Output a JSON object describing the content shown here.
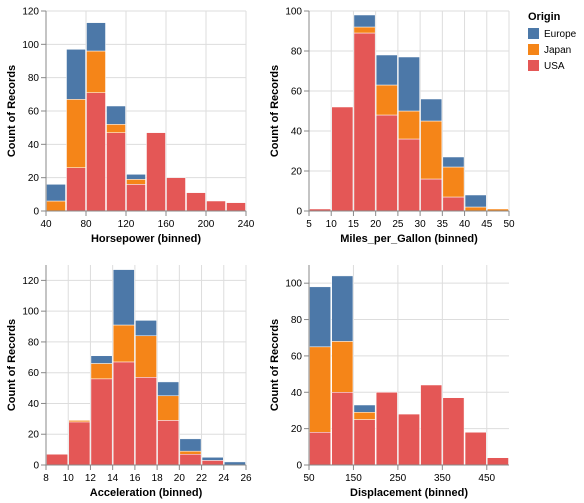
{
  "legend": {
    "title": "Origin",
    "items": [
      {
        "name": "Europe",
        "color": "#4c78a8"
      },
      {
        "name": "Japan",
        "color": "#f58518"
      },
      {
        "name": "USA",
        "color": "#e45756"
      }
    ]
  },
  "chart_data": [
    {
      "type": "bar",
      "stacked": true,
      "xlabel": "Horsepower (binned)",
      "ylabel": "Count of Records",
      "xlim": [
        40,
        240
      ],
      "ylim": [
        0,
        120
      ],
      "xticks": [
        40,
        80,
        120,
        160,
        200,
        240
      ],
      "yticks": [
        0,
        20,
        40,
        60,
        80,
        100,
        120
      ],
      "grid": true,
      "bins": [
        {
          "x0": 40,
          "x1": 60,
          "USA": 0,
          "Japan": 6,
          "Europe": 10
        },
        {
          "x0": 60,
          "x1": 80,
          "USA": 26,
          "Japan": 41,
          "Europe": 30
        },
        {
          "x0": 80,
          "x1": 100,
          "USA": 71,
          "Japan": 25,
          "Europe": 17
        },
        {
          "x0": 100,
          "x1": 120,
          "USA": 47,
          "Japan": 5,
          "Europe": 11
        },
        {
          "x0": 120,
          "x1": 140,
          "USA": 16,
          "Japan": 3,
          "Europe": 3
        },
        {
          "x0": 140,
          "x1": 160,
          "USA": 47,
          "Japan": 0,
          "Europe": 0
        },
        {
          "x0": 160,
          "x1": 180,
          "USA": 20,
          "Japan": 0,
          "Europe": 0
        },
        {
          "x0": 180,
          "x1": 200,
          "USA": 11,
          "Japan": 0,
          "Europe": 0
        },
        {
          "x0": 200,
          "x1": 220,
          "USA": 6,
          "Japan": 0,
          "Europe": 0
        },
        {
          "x0": 220,
          "x1": 240,
          "USA": 5,
          "Japan": 0,
          "Europe": 0
        }
      ]
    },
    {
      "type": "bar",
      "stacked": true,
      "xlabel": "Miles_per_Gallon (binned)",
      "ylabel": "Count of Records",
      "xlim": [
        5,
        50
      ],
      "ylim": [
        0,
        100
      ],
      "xticks": [
        5,
        10,
        15,
        20,
        25,
        30,
        35,
        40,
        45,
        50
      ],
      "yticks": [
        0,
        20,
        40,
        60,
        80,
        100
      ],
      "grid": true,
      "bins": [
        {
          "x0": 5,
          "x1": 10,
          "USA": 1,
          "Japan": 0,
          "Europe": 0
        },
        {
          "x0": 10,
          "x1": 15,
          "USA": 52,
          "Japan": 0,
          "Europe": 0
        },
        {
          "x0": 15,
          "x1": 20,
          "USA": 89,
          "Japan": 3,
          "Europe": 6
        },
        {
          "x0": 20,
          "x1": 25,
          "USA": 48,
          "Japan": 15,
          "Europe": 15
        },
        {
          "x0": 25,
          "x1": 30,
          "USA": 36,
          "Japan": 14,
          "Europe": 27
        },
        {
          "x0": 30,
          "x1": 35,
          "USA": 16,
          "Japan": 29,
          "Europe": 11
        },
        {
          "x0": 35,
          "x1": 40,
          "USA": 7,
          "Japan": 15,
          "Europe": 5
        },
        {
          "x0": 40,
          "x1": 45,
          "USA": 0,
          "Japan": 2,
          "Europe": 6
        },
        {
          "x0": 45,
          "x1": 50,
          "USA": 0,
          "Japan": 1,
          "Europe": 0
        }
      ]
    },
    {
      "type": "bar",
      "stacked": true,
      "xlabel": "Acceleration (binned)",
      "ylabel": "Count of Records",
      "xlim": [
        8,
        26
      ],
      "ylim": [
        0,
        130
      ],
      "xticks": [
        8,
        10,
        12,
        14,
        16,
        18,
        20,
        22,
        24,
        26
      ],
      "yticks": [
        0,
        20,
        40,
        60,
        80,
        100,
        120
      ],
      "grid": true,
      "bins": [
        {
          "x0": 8,
          "x1": 10,
          "USA": 7,
          "Japan": 0,
          "Europe": 0
        },
        {
          "x0": 10,
          "x1": 12,
          "USA": 28,
          "Japan": 1,
          "Europe": 0
        },
        {
          "x0": 12,
          "x1": 14,
          "USA": 56,
          "Japan": 10,
          "Europe": 5
        },
        {
          "x0": 14,
          "x1": 16,
          "USA": 67,
          "Japan": 24,
          "Europe": 36
        },
        {
          "x0": 16,
          "x1": 18,
          "USA": 57,
          "Japan": 27,
          "Europe": 10
        },
        {
          "x0": 18,
          "x1": 20,
          "USA": 29,
          "Japan": 16,
          "Europe": 9
        },
        {
          "x0": 20,
          "x1": 22,
          "USA": 7,
          "Japan": 2,
          "Europe": 8
        },
        {
          "x0": 22,
          "x1": 24,
          "USA": 3,
          "Japan": 0,
          "Europe": 2
        },
        {
          "x0": 24,
          "x1": 26,
          "USA": 0,
          "Japan": 0,
          "Europe": 2
        }
      ]
    },
    {
      "type": "bar",
      "stacked": true,
      "xlabel": "Displacement (binned)",
      "ylabel": "Count of Records",
      "xlim": [
        50,
        500
      ],
      "ylim": [
        0,
        110
      ],
      "xticks": [
        50,
        150,
        250,
        350,
        450
      ],
      "yticks": [
        0,
        20,
        40,
        60,
        80,
        100
      ],
      "grid": true,
      "bins": [
        {
          "x0": 50,
          "x1": 100,
          "USA": 18,
          "Japan": 47,
          "Europe": 33
        },
        {
          "x0": 100,
          "x1": 150,
          "USA": 40,
          "Japan": 28,
          "Europe": 36
        },
        {
          "x0": 150,
          "x1": 200,
          "USA": 25,
          "Japan": 4,
          "Europe": 4
        },
        {
          "x0": 200,
          "x1": 250,
          "USA": 40,
          "Japan": 0,
          "Europe": 0
        },
        {
          "x0": 250,
          "x1": 300,
          "USA": 28,
          "Japan": 0,
          "Europe": 0
        },
        {
          "x0": 300,
          "x1": 350,
          "USA": 44,
          "Japan": 0,
          "Europe": 0
        },
        {
          "x0": 350,
          "x1": 400,
          "USA": 37,
          "Japan": 0,
          "Europe": 0
        },
        {
          "x0": 400,
          "x1": 450,
          "USA": 18,
          "Japan": 0,
          "Europe": 0
        },
        {
          "x0": 450,
          "x1": 500,
          "USA": 4,
          "Japan": 0,
          "Europe": 0
        }
      ]
    }
  ]
}
